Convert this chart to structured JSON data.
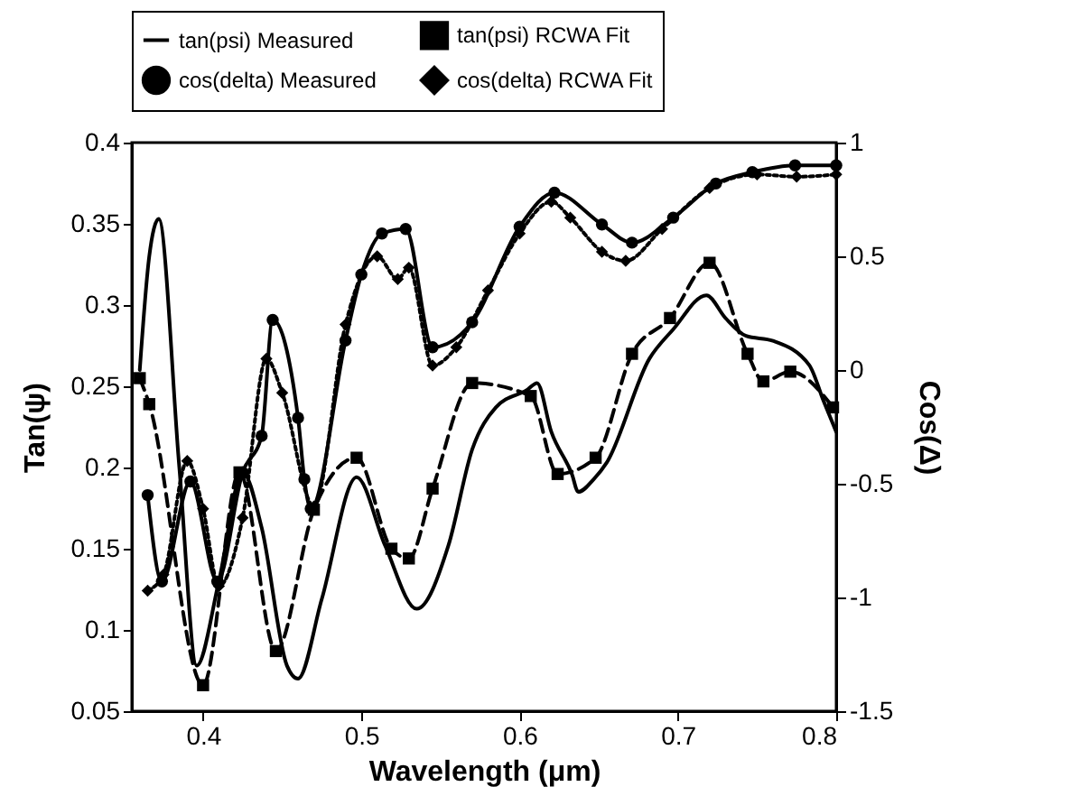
{
  "chart_data": {
    "type": "line",
    "xlabel": "Wavelength (μm)",
    "ylabel": "Tan(ψ)",
    "y2label": "Cos(Δ)",
    "xlim": [
      0.355,
      0.8
    ],
    "xticks": [
      0.4,
      0.5,
      0.6,
      0.7,
      0.8
    ],
    "ylim": [
      0.05,
      0.4
    ],
    "yticks": [
      0.05,
      0.1,
      0.15,
      0.2,
      0.25,
      0.3,
      0.35,
      0.4
    ],
    "y2lim": [
      -1.5,
      1
    ],
    "y2ticks": [
      -1.5,
      -1,
      -0.5,
      0,
      0.5,
      1
    ],
    "grid": false,
    "legend": "top",
    "series": [
      {
        "name": "tan(psi) Measured",
        "color": "#000000",
        "axis": "y",
        "line_style": "solid",
        "marker": "none",
        "x": [
          0.36,
          0.366,
          0.372,
          0.385,
          0.396,
          0.41,
          0.425,
          0.437,
          0.453,
          0.46,
          0.475,
          0.497,
          0.515,
          0.535,
          0.555,
          0.57,
          0.585,
          0.605,
          0.611,
          0.62,
          0.633,
          0.637,
          0.647,
          0.655,
          0.682,
          0.697,
          0.718,
          0.73,
          0.743,
          0.76,
          0.783,
          0.792,
          0.8
        ],
        "values": [
          0.26,
          0.33,
          0.353,
          0.2,
          0.078,
          0.13,
          0.197,
          0.163,
          0.078,
          0.07,
          0.119,
          0.194,
          0.152,
          0.113,
          0.152,
          0.211,
          0.237,
          0.248,
          0.252,
          0.222,
          0.196,
          0.185,
          0.193,
          0.203,
          0.267,
          0.285,
          0.306,
          0.292,
          0.281,
          0.278,
          0.263,
          0.241,
          0.222
        ]
      },
      {
        "name": "tan(psi) RCWA Fit",
        "color": "#000000",
        "axis": "y",
        "line_style": "dashed",
        "marker": "square",
        "x": [
          0.36,
          0.366,
          0.4,
          0.423,
          0.446,
          0.47,
          0.497,
          0.519,
          0.53,
          0.545,
          0.57,
          0.607,
          0.624,
          0.648,
          0.671,
          0.695,
          0.72,
          0.744,
          0.754,
          0.771,
          0.798
        ],
        "values": [
          0.255,
          0.239,
          0.066,
          0.197,
          0.087,
          0.174,
          0.206,
          0.15,
          0.144,
          0.187,
          0.252,
          0.244,
          0.196,
          0.206,
          0.27,
          0.292,
          0.326,
          0.27,
          0.253,
          0.259,
          0.237
        ]
      },
      {
        "name": "cos(delta) Measured",
        "color": "#000000",
        "axis": "y2",
        "line_style": "solid",
        "marker": "circle",
        "x": [
          0.365,
          0.374,
          0.392,
          0.409,
          0.425,
          0.437,
          0.444,
          0.46,
          0.464,
          0.468,
          0.49,
          0.5,
          0.513,
          0.528,
          0.545,
          0.57,
          0.6,
          0.622,
          0.652,
          0.671,
          0.697,
          0.724,
          0.747,
          0.774,
          0.8
        ],
        "values": [
          -0.55,
          -0.93,
          -0.49,
          -0.93,
          -0.45,
          -0.29,
          0.22,
          -0.21,
          -0.48,
          -0.61,
          0.13,
          0.42,
          0.6,
          0.62,
          0.1,
          0.21,
          0.63,
          0.78,
          0.64,
          0.56,
          0.67,
          0.82,
          0.87,
          0.9,
          0.9
        ]
      },
      {
        "name": "cos(delta) RCWA Fit",
        "color": "#000000",
        "axis": "y2",
        "line_style": "dotted",
        "marker": "diamond",
        "x": [
          0.365,
          0.375,
          0.39,
          0.4,
          0.41,
          0.425,
          0.44,
          0.45,
          0.47,
          0.49,
          0.51,
          0.523,
          0.53,
          0.545,
          0.56,
          0.58,
          0.6,
          0.62,
          0.632,
          0.652,
          0.667,
          0.69,
          0.72,
          0.75,
          0.775,
          0.8
        ],
        "values": [
          -0.97,
          -0.9,
          -0.4,
          -0.61,
          -0.95,
          -0.65,
          0.05,
          -0.1,
          -0.6,
          0.2,
          0.5,
          0.4,
          0.45,
          0.02,
          0.1,
          0.35,
          0.6,
          0.74,
          0.67,
          0.52,
          0.48,
          0.62,
          0.8,
          0.86,
          0.85,
          0.86
        ]
      }
    ]
  }
}
